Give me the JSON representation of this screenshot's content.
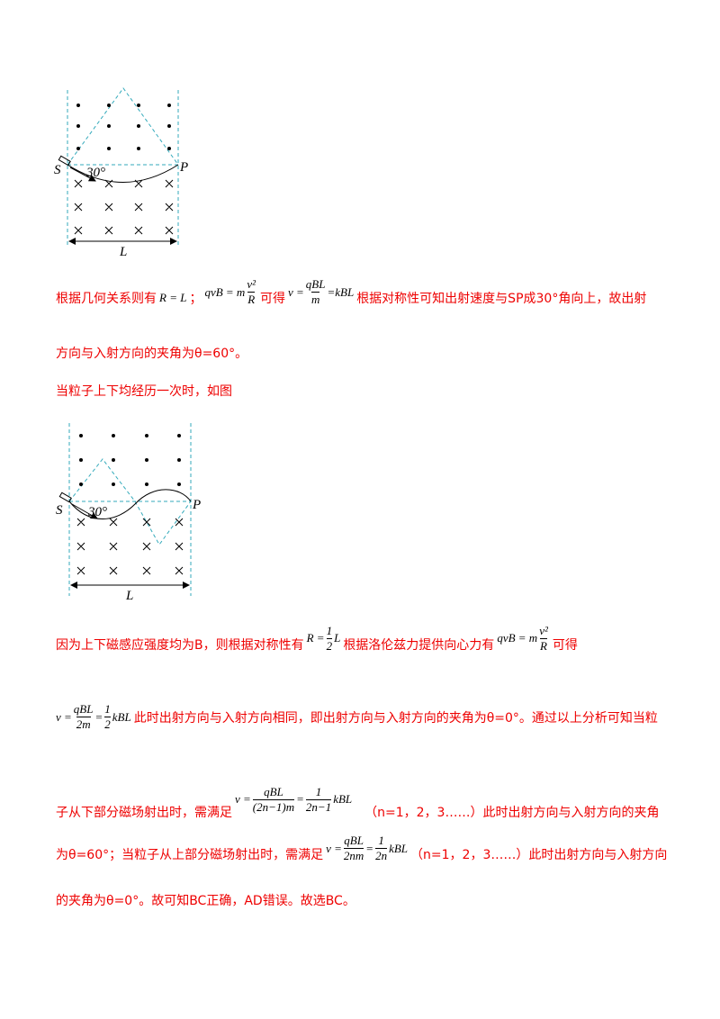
{
  "figure_1": {
    "source": "S",
    "target": "P",
    "angle": "30°",
    "width": "L"
  },
  "line_1": {
    "text_a": "根据几何关系则有",
    "eq_a": "R = L",
    "text_b": "；",
    "eq_b": {
      "left": "qvB = m",
      "num": "v²",
      "den": "R"
    },
    "text_c": "可得",
    "eq_c": {
      "left": "v =",
      "num": "qBL",
      "den": "m",
      "right": "=kBL"
    },
    "text_d": "根据对称性可知出射速度与SP成30°角向上，故出射"
  },
  "line_2": "方向与入射方向的夹角为θ=60°。",
  "line_3": "当粒子上下均经历一次时，如图",
  "figure_2": {
    "source": "S",
    "target": "P",
    "angle": "30°",
    "width": "L"
  },
  "line_4": {
    "text_a": "因为上下磁感应强度均为B，则根据对称性有",
    "eq_a": {
      "left": "R =",
      "num": "1",
      "den": "2",
      "right": "L"
    },
    "text_b": "根据洛伦兹力提供向心力有",
    "eq_b": {
      "left": "qvB = m",
      "num": "v²",
      "den": "R"
    },
    "text_c": "可得"
  },
  "line_5": {
    "eq_a": {
      "left": "v =",
      "num_1": "qBL",
      "den_1": "2m",
      "mid": "=",
      "num_2": "1",
      "den_2": "2",
      "right": "kBL"
    },
    "text_a": "此时出射方向与入射方向相同，即出射方向与入射方向的夹角为θ=0°。通过以上分析可知当粒"
  },
  "line_6": {
    "text_a": "子从下部分磁场射出时，需满足",
    "eq_a": {
      "left": "v =",
      "num_1": "qBL",
      "den_1": "(2n−1)m",
      "mid": "=",
      "num_2": "1",
      "den_2": "2n−1",
      "right": "kBL"
    },
    "text_b": "（n=1，2，3……）此时出射方向与入射方向的夹角"
  },
  "line_7": {
    "text_a": "为θ=60°；当粒子从上部分磁场射出时，需满足",
    "eq_a": {
      "left": "v =",
      "num_1": "qBL",
      "den_1": "2nm",
      "mid": "=",
      "num_2": "1",
      "den_2": "2n",
      "right": "kBL"
    },
    "text_b": "（n=1，2，3……）此时出射方向与入射方向"
  },
  "line_8": "的夹角为θ=0°。故可知BC正确，AD错误。故选BC。"
}
